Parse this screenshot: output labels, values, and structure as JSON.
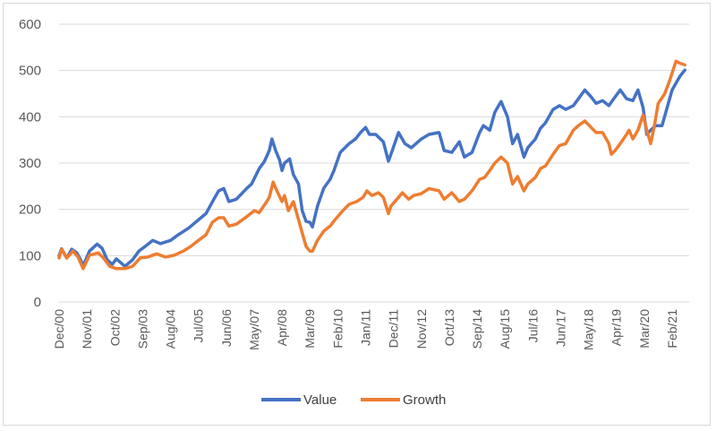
{
  "chart_data": {
    "type": "line",
    "title": "",
    "xlabel": "",
    "ylabel": "",
    "ylim": [
      0,
      600
    ],
    "yticks": [
      0,
      100,
      200,
      300,
      400,
      500,
      600
    ],
    "x_unit": "months since Dec/00",
    "xlim": [
      0,
      248
    ],
    "xtick_labels": [
      "Dec/00",
      "Nov/01",
      "Oct/02",
      "Sep/03",
      "Aug/04",
      "Jul/05",
      "Jun/06",
      "May/07",
      "Apr/08",
      "Mar/09",
      "Feb/10",
      "Jan/11",
      "Dec/11",
      "Nov/12",
      "Oct/13",
      "Sep/14",
      "Aug/15",
      "Jul/16",
      "Jun/17",
      "May/18",
      "Apr/19",
      "Mar/20",
      "Feb/21"
    ],
    "xtick_step_months": 11,
    "grid": true,
    "legend": {
      "position": "bottom",
      "entries": [
        "Value",
        "Growth"
      ]
    },
    "series": [
      {
        "name": "Value",
        "color": "#4472c4",
        "points": [
          [
            0,
            100
          ],
          [
            1,
            115
          ],
          [
            3,
            95
          ],
          [
            5,
            114
          ],
          [
            7,
            106
          ],
          [
            8.5,
            91
          ],
          [
            9.5,
            78
          ],
          [
            12,
            110
          ],
          [
            15,
            125
          ],
          [
            17,
            116
          ],
          [
            19,
            91
          ],
          [
            21,
            81
          ],
          [
            22.6,
            93
          ],
          [
            26,
            77
          ],
          [
            29,
            91
          ],
          [
            31.5,
            110
          ],
          [
            34,
            120
          ],
          [
            37,
            133
          ],
          [
            40,
            126
          ],
          [
            44,
            133
          ],
          [
            47,
            145
          ],
          [
            51,
            159
          ],
          [
            53,
            168
          ],
          [
            56,
            182
          ],
          [
            58,
            191
          ],
          [
            61.5,
            226
          ],
          [
            63,
            240
          ],
          [
            65,
            245
          ],
          [
            67,
            217
          ],
          [
            70,
            222
          ],
          [
            74,
            245
          ],
          [
            76,
            255
          ],
          [
            79,
            288
          ],
          [
            81,
            303
          ],
          [
            83,
            327
          ],
          [
            84,
            352
          ],
          [
            85.5,
            327
          ],
          [
            87,
            307
          ],
          [
            88,
            284
          ],
          [
            89,
            300
          ],
          [
            91,
            309
          ],
          [
            92.5,
            275
          ],
          [
            94.5,
            255
          ],
          [
            96,
            197
          ],
          [
            97.5,
            174
          ],
          [
            99,
            172
          ],
          [
            100,
            162
          ],
          [
            102,
            207
          ],
          [
            104.5,
            246
          ],
          [
            107,
            265
          ],
          [
            108.5,
            284
          ],
          [
            111,
            323
          ],
          [
            114.5,
            342
          ],
          [
            117,
            352
          ],
          [
            119,
            366
          ],
          [
            121,
            377
          ],
          [
            122.5,
            362
          ],
          [
            125,
            362
          ],
          [
            128,
            346
          ],
          [
            130,
            304
          ],
          [
            131,
            319
          ],
          [
            134,
            366
          ],
          [
            136.5,
            342
          ],
          [
            139,
            333
          ],
          [
            143,
            352
          ],
          [
            146,
            362
          ],
          [
            150,
            366
          ],
          [
            152,
            327
          ],
          [
            155,
            323
          ],
          [
            158,
            346
          ],
          [
            160,
            313
          ],
          [
            163,
            323
          ],
          [
            166,
            366
          ],
          [
            167.5,
            381
          ],
          [
            170,
            371
          ],
          [
            172,
            410
          ],
          [
            174.5,
            433
          ],
          [
            177,
            400
          ],
          [
            179,
            342
          ],
          [
            181,
            362
          ],
          [
            183.5,
            313
          ],
          [
            185,
            333
          ],
          [
            188,
            352
          ],
          [
            190,
            375
          ],
          [
            192,
            387
          ],
          [
            195,
            416
          ],
          [
            197.5,
            424
          ],
          [
            200,
            416
          ],
          [
            203,
            424
          ],
          [
            205,
            439
          ],
          [
            207.5,
            458
          ],
          [
            210,
            443
          ],
          [
            212,
            429
          ],
          [
            214.5,
            435
          ],
          [
            217,
            424
          ],
          [
            219.5,
            443
          ],
          [
            221.5,
            458
          ],
          [
            224,
            439
          ],
          [
            226.5,
            435
          ],
          [
            228.5,
            458
          ],
          [
            230.5,
            420
          ],
          [
            232,
            362
          ],
          [
            233.5,
            371
          ],
          [
            235.5,
            381
          ],
          [
            238,
            381
          ],
          [
            240,
            420
          ],
          [
            242,
            458
          ],
          [
            245,
            487
          ],
          [
            247,
            501
          ]
        ]
      },
      {
        "name": "Growth",
        "color": "#ed7d31",
        "points": [
          [
            0,
            95
          ],
          [
            1,
            114
          ],
          [
            3,
            95
          ],
          [
            5.5,
            110
          ],
          [
            7.5,
            97
          ],
          [
            9.5,
            72
          ],
          [
            12,
            101
          ],
          [
            15.5,
            106
          ],
          [
            17.5,
            95
          ],
          [
            20,
            77
          ],
          [
            22.6,
            72
          ],
          [
            26,
            72
          ],
          [
            29,
            77
          ],
          [
            32,
            95
          ],
          [
            35,
            97
          ],
          [
            38.5,
            104
          ],
          [
            42,
            97
          ],
          [
            45.5,
            101
          ],
          [
            49,
            110
          ],
          [
            52,
            120
          ],
          [
            55,
            133
          ],
          [
            58,
            145
          ],
          [
            60.5,
            172
          ],
          [
            63,
            182
          ],
          [
            65,
            182
          ],
          [
            67,
            164
          ],
          [
            70,
            168
          ],
          [
            74,
            184
          ],
          [
            77,
            197
          ],
          [
            79,
            193
          ],
          [
            82,
            217
          ],
          [
            83,
            226
          ],
          [
            84.5,
            259
          ],
          [
            86,
            240
          ],
          [
            88,
            217
          ],
          [
            89,
            230
          ],
          [
            90.5,
            197
          ],
          [
            92.5,
            217
          ],
          [
            94.5,
            178
          ],
          [
            96,
            149
          ],
          [
            97.5,
            120
          ],
          [
            99,
            110
          ],
          [
            100,
            110
          ],
          [
            102,
            133
          ],
          [
            104.5,
            153
          ],
          [
            107,
            164
          ],
          [
            109,
            178
          ],
          [
            112,
            197
          ],
          [
            114.5,
            211
          ],
          [
            117.5,
            217
          ],
          [
            120,
            226
          ],
          [
            121.5,
            240
          ],
          [
            123.5,
            230
          ],
          [
            126,
            236
          ],
          [
            128,
            226
          ],
          [
            130,
            191
          ],
          [
            131,
            207
          ],
          [
            134,
            226
          ],
          [
            135.5,
            236
          ],
          [
            138,
            222
          ],
          [
            140,
            230
          ],
          [
            143,
            234
          ],
          [
            146,
            245
          ],
          [
            150,
            240
          ],
          [
            152,
            222
          ],
          [
            155,
            236
          ],
          [
            158,
            217
          ],
          [
            160,
            222
          ],
          [
            163,
            240
          ],
          [
            166,
            265
          ],
          [
            168,
            269
          ],
          [
            170,
            284
          ],
          [
            172,
            300
          ],
          [
            174.5,
            313
          ],
          [
            177,
            300
          ],
          [
            179,
            255
          ],
          [
            181,
            271
          ],
          [
            183.5,
            240
          ],
          [
            185,
            255
          ],
          [
            188,
            269
          ],
          [
            190,
            288
          ],
          [
            192,
            294
          ],
          [
            195,
            319
          ],
          [
            197.5,
            338
          ],
          [
            200,
            342
          ],
          [
            203,
            371
          ],
          [
            205,
            381
          ],
          [
            207.5,
            391
          ],
          [
            210,
            377
          ],
          [
            212,
            366
          ],
          [
            214.5,
            366
          ],
          [
            217,
            342
          ],
          [
            218,
            319
          ],
          [
            219.5,
            327
          ],
          [
            221.5,
            342
          ],
          [
            224,
            362
          ],
          [
            225,
            371
          ],
          [
            226.5,
            352
          ],
          [
            228.5,
            371
          ],
          [
            230.5,
            404
          ],
          [
            232,
            371
          ],
          [
            233.5,
            342
          ],
          [
            235,
            381
          ],
          [
            236.5,
            429
          ],
          [
            239,
            449
          ],
          [
            241,
            478
          ],
          [
            243.5,
            520
          ],
          [
            245,
            516
          ],
          [
            247,
            512
          ]
        ]
      }
    ]
  }
}
